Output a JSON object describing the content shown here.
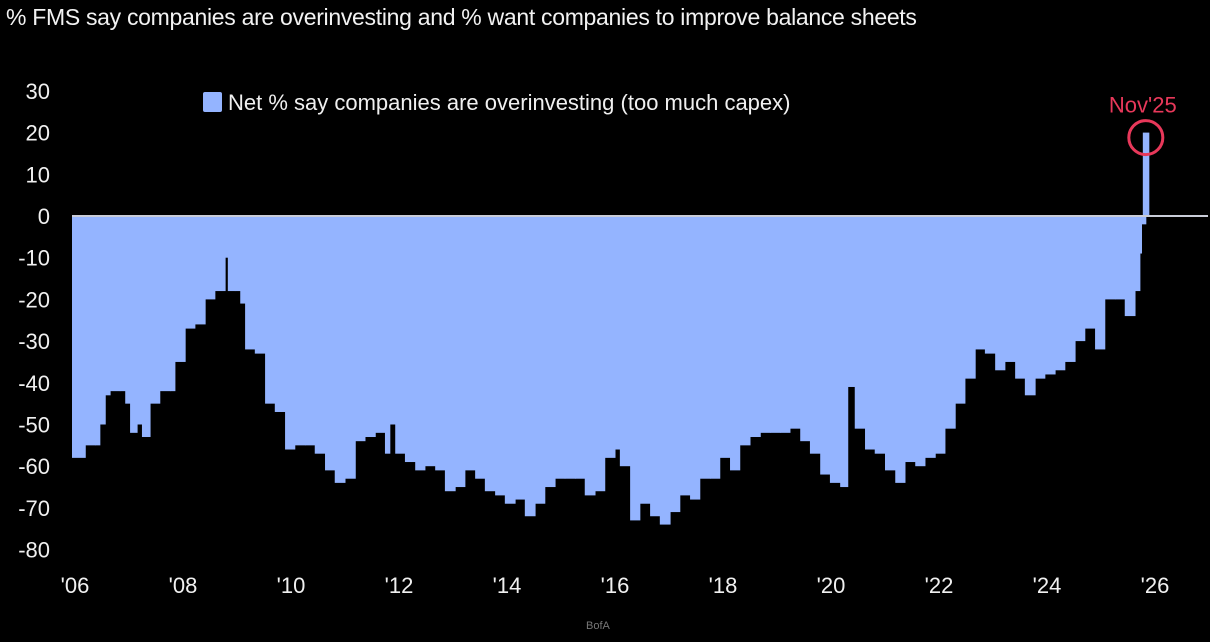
{
  "title": "% FMS say companies are overinvesting and % want companies to improve balance sheets",
  "source": "BofA",
  "colors": {
    "series": "#94b4ff",
    "zero_line": "#c9ccd8",
    "annotation": "#e8385a",
    "background": "#000000"
  },
  "chart_data": {
    "type": "bar",
    "title": "% FMS say companies are overinvesting and % want companies to improve balance sheets",
    "xlabel": "",
    "ylabel": "",
    "ylim": [
      -80,
      30
    ],
    "xlim": [
      2006,
      2027
    ],
    "yticks": [
      "30",
      "20",
      "10",
      "0",
      "-10",
      "-20",
      "-30",
      "-40",
      "-50",
      "-60",
      "-70",
      "-80"
    ],
    "ytick_values": [
      30,
      20,
      10,
      0,
      -10,
      -20,
      -30,
      -40,
      -50,
      -60,
      -70,
      -80
    ],
    "xticks": [
      "'06",
      "'08",
      "'10",
      "'12",
      "'14",
      "'16",
      "'18",
      "'20",
      "'22",
      "'24",
      "'26"
    ],
    "xtick_values": [
      2006,
      2008,
      2010,
      2012,
      2014,
      2016,
      2018,
      2020,
      2022,
      2024,
      2026
    ],
    "grid": false,
    "legend": {
      "position": "top-left",
      "entries": [
        "Net % say companies are overinvesting (too much capex)"
      ]
    },
    "annotation": {
      "label": "Nov'25",
      "x": 2025.83,
      "y": 20
    },
    "series": [
      {
        "name": "Net % say companies are overinvesting (too much capex)",
        "x": [
          2006.0,
          2006.19,
          2006.37,
          2006.46,
          2006.56,
          2006.65,
          2006.83,
          2006.93,
          2007.02,
          2007.15,
          2007.24,
          2007.39,
          2007.57,
          2007.76,
          2007.85,
          2008.04,
          2008.22,
          2008.41,
          2008.59,
          2008.78,
          2008.83,
          2008.96,
          2009.06,
          2009.15,
          2009.33,
          2009.52,
          2009.7,
          2009.89,
          2010.07,
          2010.26,
          2010.44,
          2010.63,
          2010.81,
          2011.0,
          2011.19,
          2011.37,
          2011.56,
          2011.74,
          2011.83,
          2011.93,
          2012.11,
          2012.3,
          2012.48,
          2012.67,
          2012.85,
          2013.04,
          2013.22,
          2013.41,
          2013.59,
          2013.78,
          2013.96,
          2014.15,
          2014.33,
          2014.52,
          2014.7,
          2014.89,
          2015.07,
          2015.26,
          2015.44,
          2015.63,
          2015.81,
          2016.0,
          2016.09,
          2016.28,
          2016.46,
          2016.65,
          2016.83,
          2017.02,
          2017.2,
          2017.39,
          2017.57,
          2017.76,
          2017.94,
          2018.13,
          2018.31,
          2018.5,
          2018.69,
          2018.87,
          2019.06,
          2019.24,
          2019.43,
          2019.61,
          2019.8,
          2019.98,
          2020.17,
          2020.31,
          2020.44,
          2020.63,
          2020.81,
          2021.0,
          2021.19,
          2021.37,
          2021.56,
          2021.74,
          2021.93,
          2022.11,
          2022.3,
          2022.48,
          2022.67,
          2022.85,
          2023.04,
          2023.22,
          2023.41,
          2023.59,
          2023.78,
          2023.96,
          2024.15,
          2024.33,
          2024.52,
          2024.7,
          2024.89,
          2025.07,
          2025.26,
          2025.44,
          2025.63,
          2025.72,
          2025.75,
          2025.83
        ],
        "values": [
          -58,
          -55,
          -55,
          -50,
          -43,
          -42,
          -42,
          -45,
          -52,
          -50,
          -53,
          -45,
          -42,
          -42,
          -35,
          -27,
          -26,
          -20,
          -18,
          -10,
          -18,
          -18,
          -21,
          -32,
          -33,
          -45,
          -47,
          -56,
          -55,
          -55,
          -57,
          -61,
          -64,
          -63,
          -54,
          -53,
          -52,
          -57,
          -50,
          -57,
          -59,
          -61,
          -60,
          -61,
          -66,
          -65,
          -61,
          -63,
          -66,
          -67,
          -69,
          -68,
          -72,
          -69,
          -65,
          -63,
          -63,
          -63,
          -67,
          -66,
          -58,
          -56,
          -60,
          -73,
          -69,
          -72,
          -74,
          -71,
          -67,
          -68,
          -63,
          -63,
          -58,
          -61,
          -55,
          -53,
          -52,
          -52,
          -52,
          -51,
          -54,
          -57,
          -62,
          -64,
          -65,
          -41,
          -51,
          -56,
          -57,
          -61,
          -64,
          -59,
          -60,
          -58,
          -57,
          -51,
          -45,
          -39,
          -32,
          -33,
          -37,
          -35,
          -39,
          -43,
          -39,
          -38,
          -37,
          -35,
          -30,
          -27,
          -32,
          -20,
          -20,
          -24,
          -18,
          -9,
          -2,
          20
        ]
      }
    ]
  }
}
